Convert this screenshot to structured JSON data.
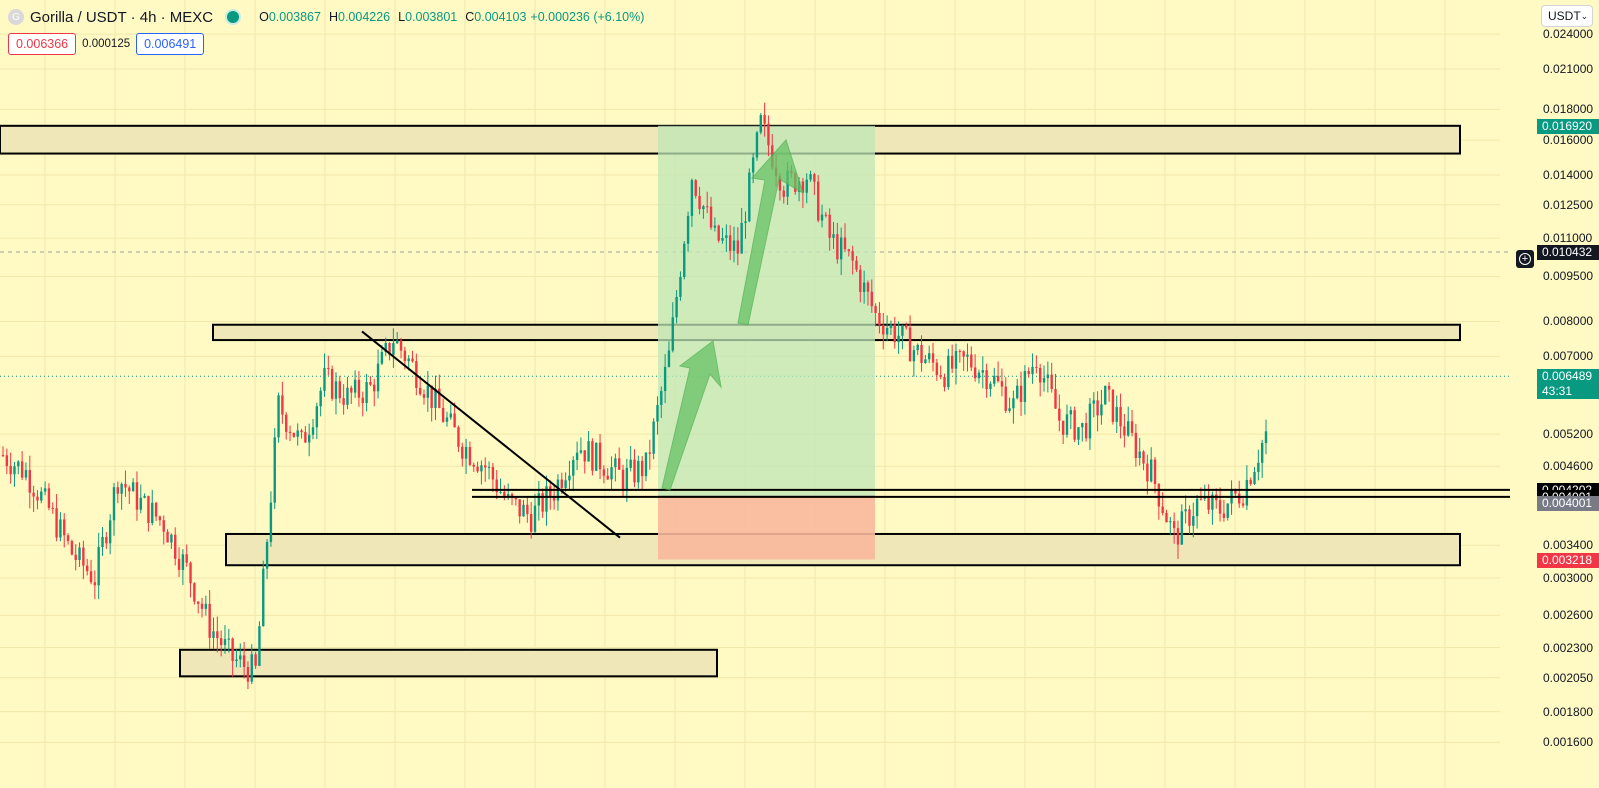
{
  "header": {
    "logo_letter": "G",
    "title": "Gorilla / USDT · 4h · MEXC",
    "ohlc": [
      {
        "k": "O",
        "v": "0.003867"
      },
      {
        "k": "H",
        "v": "0.004226"
      },
      {
        "k": "L",
        "v": "0.003801"
      },
      {
        "k": "C",
        "v": "0.004103"
      }
    ],
    "change": "+0.000236 (+6.10%)",
    "sell_price": "0.006366",
    "spread": "0.000125",
    "buy_price": "0.006491",
    "currency": "USDT"
  },
  "colors": {
    "background": "#fff9c4",
    "up": "#089981",
    "down": "#f23645",
    "zone_fill": "#efe7b7",
    "position_profit": "#bfe5b7",
    "position_loss": "#f8b89c",
    "arrow": "#66c266"
  },
  "price_labels": [
    {
      "value": 0.01692,
      "text": "0.016920",
      "bg": "#089981",
      "color": "#ffffff"
    },
    {
      "value": 0.010432,
      "text": "0.010432",
      "bg": "#131722",
      "color": "#ffffff"
    },
    {
      "value": 0.006489,
      "text": "0.006489",
      "sub": "43:31",
      "bg": "#089981",
      "color": "#ffffff"
    },
    {
      "value": 0.004202,
      "text": "0.004202",
      "bg": "#000000",
      "color": "#ffffff"
    },
    {
      "value": 0.004091,
      "text": "0.004091",
      "bg": "#000000",
      "color": "#ffffff"
    },
    {
      "value": 0.004001,
      "text": "0.004001",
      "bg": "#787b86",
      "color": "#ffffff"
    },
    {
      "value": 0.003218,
      "text": "0.003218",
      "bg": "#f23645",
      "color": "#ffffff"
    }
  ],
  "chart_data": {
    "type": "candlestick",
    "symbol": "Gorilla / USDT",
    "interval": "4h",
    "exchange": "MEXC",
    "yaxis_ticks": [
      "0.024000",
      "0.021000",
      "0.018000",
      "0.016000",
      "0.014000",
      "0.012500",
      "0.011000",
      "0.009500",
      "0.008000",
      "0.007000",
      "0.005200",
      "0.004600",
      "0.003400",
      "0.003000",
      "0.002600",
      "0.002300",
      "0.002050",
      "0.001800",
      "0.001600"
    ],
    "log_scale": true,
    "current_price": 0.006489,
    "countdown": "43:31",
    "candles_approx": [
      [
        0.0048,
        0.0049
      ],
      [
        0.0045,
        0.0043
      ],
      [
        0.0039,
        0.0034
      ],
      [
        0.0033,
        0.0029
      ],
      [
        0.003,
        0.0036
      ],
      [
        0.0044,
        0.004
      ],
      [
        0.004,
        0.0042
      ],
      [
        0.0037,
        0.0033
      ],
      [
        0.0031,
        0.0026
      ],
      [
        0.0025,
        0.0023
      ],
      [
        0.0022,
        0.0021
      ],
      [
        0.0021,
        0.0033
      ],
      [
        0.0058,
        0.0062
      ],
      [
        0.005,
        0.0036
      ],
      [
        0.0064,
        0.0074
      ],
      [
        0.006,
        0.0055
      ],
      [
        0.0062,
        0.0068
      ],
      [
        0.0075,
        0.0072
      ],
      [
        0.0066,
        0.006
      ],
      [
        0.0057,
        0.0052
      ],
      [
        0.005,
        0.0047
      ],
      [
        0.0046,
        0.0043
      ],
      [
        0.004,
        0.0037
      ],
      [
        0.0038,
        0.004
      ],
      [
        0.0042,
        0.0044
      ],
      [
        0.005,
        0.0048
      ],
      [
        0.0047,
        0.0049
      ],
      [
        0.0044,
        0.0042
      ],
      [
        0.0046,
        0.006
      ],
      [
        0.007,
        0.01
      ],
      [
        0.014,
        0.013
      ],
      [
        0.011,
        0.009
      ],
      [
        0.0105,
        0.015
      ],
      [
        0.017,
        0.015
      ],
      [
        0.0135,
        0.0145
      ],
      [
        0.014,
        0.012
      ],
      [
        0.011,
        0.0095
      ],
      [
        0.01,
        0.0085
      ],
      [
        0.0082,
        0.0078
      ],
      [
        0.0076,
        0.0072
      ],
      [
        0.007,
        0.0064
      ],
      [
        0.0066,
        0.0068
      ],
      [
        0.0069,
        0.0067
      ],
      [
        0.0065,
        0.0061
      ],
      [
        0.0058,
        0.0055
      ],
      [
        0.007,
        0.006
      ],
      [
        0.0055,
        0.0053
      ],
      [
        0.0053,
        0.0052
      ],
      [
        0.006,
        0.0052
      ],
      [
        0.0052,
        0.0048
      ],
      [
        0.0045,
        0.0037
      ],
      [
        0.0035,
        0.004
      ],
      [
        0.004,
        0.0039
      ],
      [
        0.0039,
        0.0041
      ],
      [
        0.0042,
        0.005
      ],
      [
        0.0052,
        0.0065
      ]
    ],
    "zones": [
      {
        "top": 0.0169,
        "bottom": 0.0152
      },
      {
        "top": 0.0079,
        "bottom": 0.00745
      },
      {
        "top": 0.00355,
        "bottom": 0.00315
      },
      {
        "top": 0.00228,
        "bottom": 0.00206
      }
    ],
    "horizontal_lines": [
      0.004202,
      0.004091
    ],
    "trendline": {
      "from": 0.0077,
      "to": 0.0035
    },
    "long_position": {
      "target": 0.0169,
      "entry": 0.0041,
      "stop": 0.00322
    }
  }
}
